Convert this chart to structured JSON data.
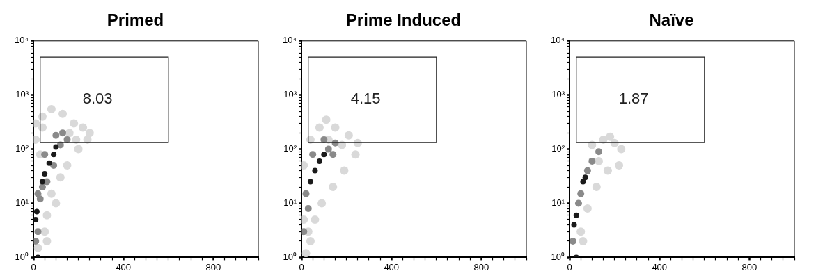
{
  "chart_data": [
    {
      "type": "scatter",
      "title": "Primed",
      "log": "y",
      "xlim": [
        0,
        1000
      ],
      "ylim": [
        1,
        10000
      ],
      "marker": "circle",
      "grid": false,
      "xticks": [
        0,
        {
          "value": 50,
          "label": null
        },
        {
          "value": 100,
          "label": null
        },
        {
          "value": 150,
          "label": null
        },
        {
          "value": 200,
          "label": null
        },
        {
          "value": 250,
          "label": null
        },
        {
          "value": 300,
          "label": null
        },
        {
          "value": 350,
          "label": null
        },
        400,
        {
          "value": 450,
          "label": null
        },
        {
          "value": 500,
          "label": null
        },
        {
          "value": 550,
          "label": null
        },
        {
          "value": 600,
          "label": null
        },
        {
          "value": 650,
          "label": null
        },
        {
          "value": 700,
          "label": null
        },
        {
          "value": 750,
          "label": null
        },
        800,
        {
          "value": 850,
          "label": null
        },
        {
          "value": 900,
          "label": null
        },
        {
          "value": 950,
          "label": null
        },
        {
          "value": 1000,
          "label": null
        }
      ],
      "yticks": [
        {
          "value": 1,
          "label": "10⁰"
        },
        {
          "value": 2,
          "label": null
        },
        {
          "value": 3,
          "label": null
        },
        {
          "value": 4,
          "label": null
        },
        {
          "value": 5,
          "label": null
        },
        {
          "value": 6,
          "label": null
        },
        {
          "value": 7,
          "label": null
        },
        {
          "value": 8,
          "label": null
        },
        {
          "value": 9,
          "label": null
        },
        {
          "value": 10,
          "label": "10¹"
        },
        {
          "value": 20,
          "label": null
        },
        {
          "value": 30,
          "label": null
        },
        {
          "value": 40,
          "label": null
        },
        {
          "value": 50,
          "label": null
        },
        {
          "value": 60,
          "label": null
        },
        {
          "value": 70,
          "label": null
        },
        {
          "value": 80,
          "label": null
        },
        {
          "value": 90,
          "label": null
        },
        {
          "value": 100,
          "label": "10²"
        },
        {
          "value": 200,
          "label": null
        },
        {
          "value": 300,
          "label": null
        },
        {
          "value": 400,
          "label": null
        },
        {
          "value": 500,
          "label": null
        },
        {
          "value": 600,
          "label": null
        },
        {
          "value": 700,
          "label": null
        },
        {
          "value": 800,
          "label": null
        },
        {
          "value": 900,
          "label": null
        },
        {
          "value": 1000,
          "label": "10³"
        },
        {
          "value": 2000,
          "label": null
        },
        {
          "value": 3000,
          "label": null
        },
        {
          "value": 4000,
          "label": null
        },
        {
          "value": 5000,
          "label": null
        },
        {
          "value": 6000,
          "label": null
        },
        {
          "value": 7000,
          "label": null
        },
        {
          "value": 8000,
          "label": null
        },
        {
          "value": 9000,
          "label": null
        },
        {
          "value": 10000,
          "label": "10⁴"
        }
      ],
      "annotations": [
        "8.03"
      ],
      "series": [
        {
          "color": "#d9d9d9",
          "x": [
            10,
            40,
            60,
            80,
            120,
            150,
            200,
            240,
            250,
            220,
            180,
            130,
            80,
            40,
            10,
            20,
            50,
            100,
            160,
            190,
            30,
            60
          ],
          "values": [
            150,
            250,
            2,
            15,
            30,
            50,
            100,
            150,
            200,
            250,
            300,
            450,
            550,
            400,
            300,
            1.5,
            3,
            10,
            200,
            150,
            80,
            6
          ]
        },
        {
          "color": "#8a8a8a",
          "x": [
            10,
            20,
            30,
            40,
            60,
            90,
            120,
            150,
            130,
            20,
            50,
            100
          ],
          "values": [
            2,
            3,
            12,
            20,
            25,
            50,
            120,
            150,
            200,
            15,
            80,
            180
          ]
        },
        {
          "color": "#1a1a1a",
          "x": [
            20,
            10,
            15,
            40,
            50,
            70,
            90,
            100
          ],
          "values": [
            1,
            5,
            7,
            25,
            35,
            55,
            80,
            110
          ]
        }
      ]
    },
    {
      "type": "scatter",
      "title": "Prime Induced",
      "log": "y",
      "xlim": [
        0,
        1000
      ],
      "ylim": [
        1,
        10000
      ],
      "marker": "circle",
      "grid": false,
      "xticks": [
        0,
        {
          "value": 50,
          "label": null
        },
        {
          "value": 100,
          "label": null
        },
        {
          "value": 150,
          "label": null
        },
        {
          "value": 200,
          "label": null
        },
        {
          "value": 250,
          "label": null
        },
        {
          "value": 300,
          "label": null
        },
        {
          "value": 350,
          "label": null
        },
        400,
        {
          "value": 450,
          "label": null
        },
        {
          "value": 500,
          "label": null
        },
        {
          "value": 550,
          "label": null
        },
        {
          "value": 600,
          "label": null
        },
        {
          "value": 650,
          "label": null
        },
        {
          "value": 700,
          "label": null
        },
        {
          "value": 750,
          "label": null
        },
        800,
        {
          "value": 850,
          "label": null
        },
        {
          "value": 900,
          "label": null
        },
        {
          "value": 950,
          "label": null
        },
        {
          "value": 1000,
          "label": null
        }
      ],
      "yticks": [
        {
          "value": 1,
          "label": "10⁰"
        },
        {
          "value": 2,
          "label": null
        },
        {
          "value": 3,
          "label": null
        },
        {
          "value": 4,
          "label": null
        },
        {
          "value": 5,
          "label": null
        },
        {
          "value": 6,
          "label": null
        },
        {
          "value": 7,
          "label": null
        },
        {
          "value": 8,
          "label": null
        },
        {
          "value": 9,
          "label": null
        },
        {
          "value": 10,
          "label": "10¹"
        },
        {
          "value": 20,
          "label": null
        },
        {
          "value": 30,
          "label": null
        },
        {
          "value": 40,
          "label": null
        },
        {
          "value": 50,
          "label": null
        },
        {
          "value": 60,
          "label": null
        },
        {
          "value": 70,
          "label": null
        },
        {
          "value": 80,
          "label": null
        },
        {
          "value": 90,
          "label": null
        },
        {
          "value": 100,
          "label": "10²"
        },
        {
          "value": 200,
          "label": null
        },
        {
          "value": 300,
          "label": null
        },
        {
          "value": 400,
          "label": null
        },
        {
          "value": 500,
          "label": null
        },
        {
          "value": 600,
          "label": null
        },
        {
          "value": 700,
          "label": null
        },
        {
          "value": 800,
          "label": null
        },
        {
          "value": 900,
          "label": null
        },
        {
          "value": 1000,
          "label": "10³"
        },
        {
          "value": 2000,
          "label": null
        },
        {
          "value": 3000,
          "label": null
        },
        {
          "value": 4000,
          "label": null
        },
        {
          "value": 5000,
          "label": null
        },
        {
          "value": 6000,
          "label": null
        },
        {
          "value": 7000,
          "label": null
        },
        {
          "value": 8000,
          "label": null
        },
        {
          "value": 9000,
          "label": null
        },
        {
          "value": 10000,
          "label": "10⁴"
        }
      ],
      "annotations": [
        "4.15"
      ],
      "series": [
        {
          "color": "#d9d9d9",
          "x": [
            20,
            40,
            60,
            90,
            140,
            190,
            240,
            250,
            210,
            150,
            110,
            80,
            40,
            10,
            10,
            30,
            120,
            180
          ],
          "values": [
            1.2,
            2,
            5,
            10,
            20,
            40,
            80,
            130,
            180,
            250,
            350,
            250,
            150,
            50,
            5,
            3,
            150,
            120
          ]
        },
        {
          "color": "#8a8a8a",
          "x": [
            20,
            30,
            10,
            120,
            150,
            100,
            140,
            50
          ],
          "values": [
            15,
            8,
            3,
            100,
            130,
            150,
            80,
            80
          ]
        },
        {
          "color": "#1a1a1a",
          "x": [
            40,
            60,
            80,
            100
          ],
          "values": [
            25,
            40,
            60,
            80
          ]
        }
      ]
    },
    {
      "type": "scatter",
      "title": "Naïve",
      "log": "y",
      "xlim": [
        0,
        1000
      ],
      "ylim": [
        1,
        10000
      ],
      "marker": "circle",
      "grid": false,
      "xticks": [
        0,
        {
          "value": 50,
          "label": null
        },
        {
          "value": 100,
          "label": null
        },
        {
          "value": 150,
          "label": null
        },
        {
          "value": 200,
          "label": null
        },
        {
          "value": 250,
          "label": null
        },
        {
          "value": 300,
          "label": null
        },
        {
          "value": 350,
          "label": null
        },
        400,
        {
          "value": 450,
          "label": null
        },
        {
          "value": 500,
          "label": null
        },
        {
          "value": 550,
          "label": null
        },
        {
          "value": 600,
          "label": null
        },
        {
          "value": 650,
          "label": null
        },
        {
          "value": 700,
          "label": null
        },
        {
          "value": 750,
          "label": null
        },
        800,
        {
          "value": 850,
          "label": null
        },
        {
          "value": 900,
          "label": null
        },
        {
          "value": 950,
          "label": null
        },
        {
          "value": 1000,
          "label": null
        }
      ],
      "yticks": [
        {
          "value": 1,
          "label": "10⁰"
        },
        {
          "value": 2,
          "label": null
        },
        {
          "value": 3,
          "label": null
        },
        {
          "value": 4,
          "label": null
        },
        {
          "value": 5,
          "label": null
        },
        {
          "value": 6,
          "label": null
        },
        {
          "value": 7,
          "label": null
        },
        {
          "value": 8,
          "label": null
        },
        {
          "value": 9,
          "label": null
        },
        {
          "value": 10,
          "label": "10¹"
        },
        {
          "value": 20,
          "label": null
        },
        {
          "value": 30,
          "label": null
        },
        {
          "value": 40,
          "label": null
        },
        {
          "value": 50,
          "label": null
        },
        {
          "value": 60,
          "label": null
        },
        {
          "value": 70,
          "label": null
        },
        {
          "value": 80,
          "label": null
        },
        {
          "value": 90,
          "label": null
        },
        {
          "value": 100,
          "label": "10²"
        },
        {
          "value": 200,
          "label": null
        },
        {
          "value": 300,
          "label": null
        },
        {
          "value": 400,
          "label": null
        },
        {
          "value": 500,
          "label": null
        },
        {
          "value": 600,
          "label": null
        },
        {
          "value": 700,
          "label": null
        },
        {
          "value": 800,
          "label": null
        },
        {
          "value": 900,
          "label": null
        },
        {
          "value": 1000,
          "label": "10³"
        },
        {
          "value": 2000,
          "label": null
        },
        {
          "value": 3000,
          "label": null
        },
        {
          "value": 4000,
          "label": null
        },
        {
          "value": 5000,
          "label": null
        },
        {
          "value": 6000,
          "label": null
        },
        {
          "value": 7000,
          "label": null
        },
        {
          "value": 8000,
          "label": null
        },
        {
          "value": 9000,
          "label": null
        },
        {
          "value": 10000,
          "label": "10⁴"
        }
      ],
      "annotations": [
        "1.87"
      ],
      "series": [
        {
          "color": "#d9d9d9",
          "x": [
            150,
            200,
            230,
            220,
            170,
            120,
            80,
            50,
            100,
            180,
            60,
            130
          ],
          "values": [
            150,
            130,
            100,
            50,
            40,
            20,
            8,
            3,
            120,
            170,
            2,
            60
          ]
        },
        {
          "color": "#8a8a8a",
          "x": [
            40,
            100,
            130,
            15,
            50,
            80
          ],
          "values": [
            10,
            60,
            90,
            2,
            15,
            40
          ]
        },
        {
          "color": "#1a1a1a",
          "x": [
            30,
            20,
            30,
            70,
            60
          ],
          "values": [
            1,
            4,
            6,
            30,
            25
          ]
        }
      ]
    }
  ]
}
